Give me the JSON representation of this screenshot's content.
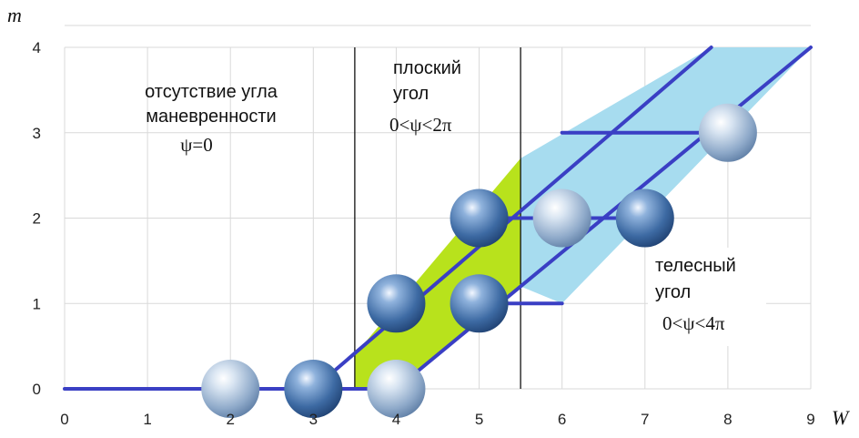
{
  "chart_data": {
    "type": "scatter",
    "xlabel": "W",
    "ylabel": "m",
    "xlim": [
      0,
      9
    ],
    "ylim": [
      0,
      4
    ],
    "x_ticks": [
      "0",
      "1",
      "2",
      "3",
      "4",
      "5",
      "6",
      "7",
      "8",
      "9"
    ],
    "y_ticks": [
      "0",
      "1",
      "2",
      "3",
      "4"
    ],
    "grid": "vertical and horizontal, light gray",
    "colors": {
      "boundary": "#3a3fc4",
      "plane_region": "#b8e21c",
      "solid_region": "#a7dcef",
      "ball_light": "#9fb8d6",
      "ball_dark": "#2f5a8f"
    },
    "points": [
      {
        "x": 2,
        "y": 0,
        "shade": "light"
      },
      {
        "x": 3,
        "y": 0,
        "shade": "dark"
      },
      {
        "x": 4,
        "y": 0,
        "shade": "light"
      },
      {
        "x": 4,
        "y": 1,
        "shade": "dark"
      },
      {
        "x": 5,
        "y": 1,
        "shade": "dark"
      },
      {
        "x": 5,
        "y": 2,
        "shade": "dark"
      },
      {
        "x": 6,
        "y": 2,
        "shade": "light"
      },
      {
        "x": 7,
        "y": 2,
        "shade": "dark"
      },
      {
        "x": 8,
        "y": 3,
        "shade": "light"
      }
    ],
    "boundary_lines": [
      {
        "x": [
          0,
          3,
          7.8
        ],
        "y": [
          0,
          0,
          4
        ]
      },
      {
        "x": [
          3,
          4,
          9
        ],
        "y": [
          0,
          0,
          4
        ]
      },
      {
        "x": [
          5,
          7
        ],
        "y": [
          2,
          2
        ]
      },
      {
        "x": [
          6,
          8
        ],
        "y": [
          3,
          3
        ]
      },
      {
        "x": [
          5,
          6
        ],
        "y": [
          1,
          1
        ]
      }
    ],
    "separators": [
      3.5,
      5.5
    ],
    "regions": [
      {
        "name": "plane",
        "x": [
          3.5,
          4,
          5.5,
          5.5,
          3.5
        ],
        "y": [
          0,
          0,
          1.2,
          2.7,
          0.4
        ]
      },
      {
        "name": "solid",
        "x": [
          5.5,
          5.5,
          7.8,
          9,
          6
        ],
        "y": [
          1.2,
          2.7,
          4,
          4,
          1
        ]
      }
    ],
    "annotations": [
      {
        "lines": [
          "отсутствие угла",
          "маневренности",
          "ψ=0"
        ]
      },
      {
        "lines": [
          "плоский",
          "угол",
          "0<ψ<2π"
        ]
      },
      {
        "lines": [
          "телесный",
          "угол",
          "0<ψ<4π"
        ]
      }
    ]
  }
}
